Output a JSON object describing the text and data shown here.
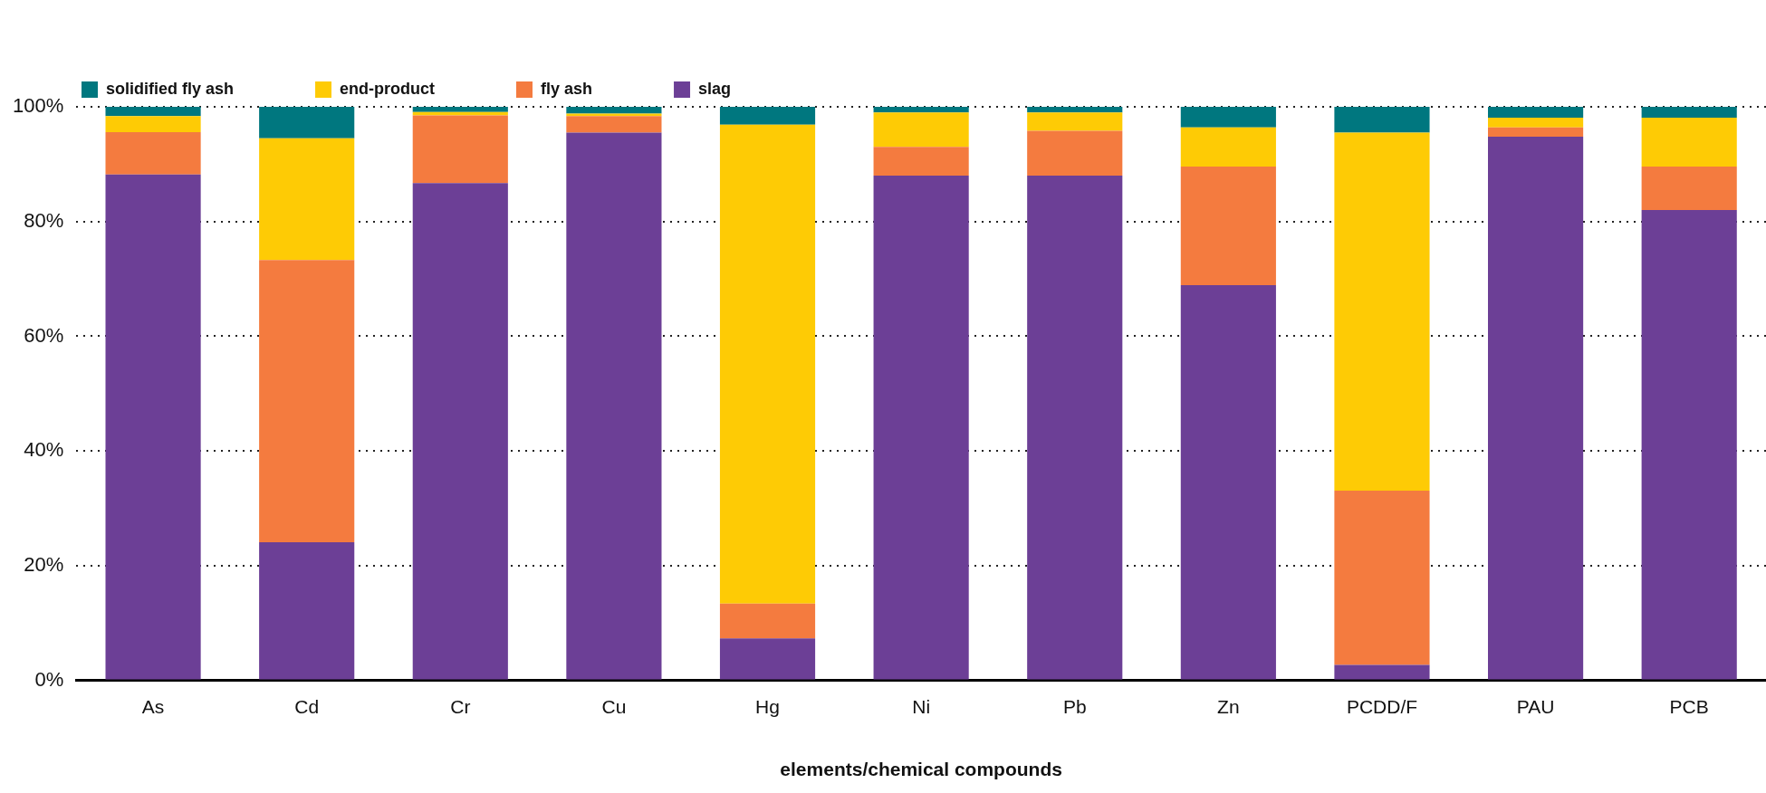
{
  "chart_data": {
    "type": "bar",
    "stacked": true,
    "xlabel": "elements/chemical compounds",
    "categories": [
      "As",
      "Cd",
      "Cr",
      "Cu",
      "Hg",
      "Ni",
      "Pb",
      "Zn",
      "PCDD/F",
      "PAU",
      "PCB"
    ],
    "series": [
      {
        "name": "slag",
        "color": "#6c3f96",
        "values": [
          88.2,
          24.1,
          86.7,
          95.5,
          7.3,
          88.0,
          88.0,
          68.9,
          2.7,
          94.8,
          82.0
        ]
      },
      {
        "name": "fly ash",
        "color": "#f47b3f",
        "values": [
          7.4,
          49.2,
          11.8,
          2.9,
          6.1,
          5.0,
          7.8,
          20.7,
          30.4,
          1.6,
          7.6
        ]
      },
      {
        "name": "end-product",
        "color": "#fecb05",
        "values": [
          2.8,
          21.2,
          0.6,
          0.4,
          83.5,
          6.0,
          3.2,
          6.8,
          62.4,
          1.7,
          8.5
        ]
      },
      {
        "name": "solidified fly ash",
        "color": "#00777f",
        "values": [
          1.6,
          5.5,
          0.9,
          1.2,
          3.1,
          1.0,
          1.0,
          3.6,
          4.5,
          1.9,
          1.9
        ]
      }
    ],
    "ylim": [
      0,
      100
    ],
    "yticks": [
      {
        "value": 0,
        "label": "0%"
      },
      {
        "value": 20,
        "label": "20%"
      },
      {
        "value": 40,
        "label": "40%"
      },
      {
        "value": 60,
        "label": "60%"
      },
      {
        "value": 80,
        "label": "80%"
      },
      {
        "value": 100,
        "label": "100%"
      }
    ],
    "grid": "y",
    "legend": "top left"
  }
}
